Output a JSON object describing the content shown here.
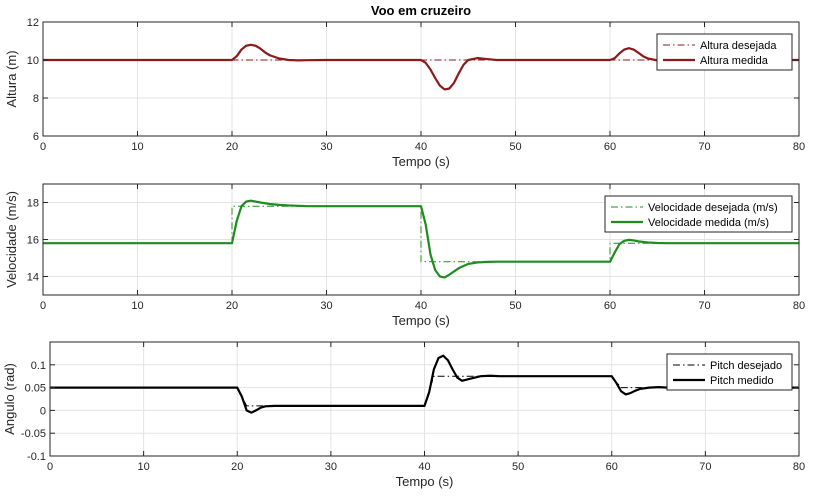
{
  "figure_title": "Voo em cruzeiro",
  "chart_data": [
    {
      "type": "line",
      "title": "Voo em cruzeiro",
      "xlabel": "Tempo (s)",
      "ylabel": "Altura (m)",
      "xlim": [
        0,
        80
      ],
      "ylim": [
        6,
        12
      ],
      "xticks": [
        0,
        10,
        20,
        30,
        40,
        50,
        60,
        70,
        80
      ],
      "yticks": [
        6,
        8,
        10,
        12
      ],
      "grid": true,
      "legend_position": "top-right",
      "series": [
        {
          "name": "Altura desejada",
          "color": "#8b1a1a",
          "style": "dashdot",
          "x": [
            0,
            80
          ],
          "y": [
            10,
            10
          ]
        },
        {
          "name": "Altura medida",
          "color": "#8b1a1a",
          "style": "solid",
          "x": [
            0,
            20,
            20.5,
            21,
            21.5,
            22,
            22.5,
            23,
            23.5,
            24,
            25,
            26,
            27,
            28,
            30,
            40,
            40.5,
            41,
            41.5,
            42,
            42.5,
            43,
            43.5,
            44,
            44.5,
            45,
            46,
            47,
            48,
            50,
            60,
            60.5,
            61,
            61.5,
            62,
            62.5,
            63,
            63.5,
            64,
            65,
            66,
            67,
            68,
            80
          ],
          "y": [
            10,
            10,
            10.2,
            10.55,
            10.75,
            10.8,
            10.75,
            10.6,
            10.4,
            10.25,
            10.08,
            10.0,
            9.98,
            9.99,
            10,
            10,
            9.85,
            9.5,
            9.05,
            8.65,
            8.45,
            8.5,
            8.8,
            9.3,
            9.75,
            10.0,
            10.1,
            10.05,
            10.0,
            10,
            10,
            10.1,
            10.35,
            10.55,
            10.62,
            10.55,
            10.38,
            10.2,
            10.08,
            9.98,
            9.97,
            9.99,
            10,
            10
          ]
        }
      ]
    },
    {
      "type": "line",
      "xlabel": "Tempo (s)",
      "ylabel": "Velocidade (m/s)",
      "xlim": [
        0,
        80
      ],
      "ylim": [
        13,
        19
      ],
      "xticks": [
        0,
        10,
        20,
        30,
        40,
        50,
        60,
        70,
        80
      ],
      "yticks": [
        14,
        16,
        18
      ],
      "grid": true,
      "legend_position": "top-right",
      "series": [
        {
          "name": "Velocidade desejada (m/s)",
          "color": "#1e8c1e",
          "style": "dashdot",
          "x": [
            0,
            20,
            20,
            40,
            40,
            60,
            60,
            80
          ],
          "y": [
            15.8,
            15.8,
            17.8,
            17.8,
            14.8,
            14.8,
            15.8,
            15.8
          ]
        },
        {
          "name": "Velocidade medida (m/s)",
          "color": "#1e8c1e",
          "style": "solid",
          "x": [
            0,
            20,
            20.5,
            21,
            21.5,
            22,
            22.5,
            23,
            24,
            25,
            26,
            27,
            28,
            30,
            40,
            40.5,
            41,
            41.5,
            42,
            42.5,
            43,
            44,
            45,
            46,
            47,
            48,
            50,
            60,
            60.5,
            61,
            61.5,
            62,
            62.5,
            63,
            64,
            65,
            66,
            68,
            80
          ],
          "y": [
            15.8,
            15.8,
            17.0,
            17.8,
            18.05,
            18.1,
            18.05,
            18.0,
            17.92,
            17.87,
            17.84,
            17.82,
            17.8,
            17.8,
            17.8,
            16.8,
            15.2,
            14.35,
            14.0,
            13.95,
            14.1,
            14.45,
            14.68,
            14.76,
            14.79,
            14.8,
            14.8,
            14.8,
            15.3,
            15.75,
            15.93,
            15.98,
            15.95,
            15.9,
            15.84,
            15.81,
            15.8,
            15.8,
            15.8
          ]
        }
      ]
    },
    {
      "type": "line",
      "xlabel": "Tempo (s)",
      "ylabel": "Angulo (rad)",
      "xlim": [
        0,
        80
      ],
      "ylim": [
        -0.1,
        0.15
      ],
      "xticks": [
        0,
        10,
        20,
        30,
        40,
        50,
        60,
        70,
        80
      ],
      "yticks": [
        -0.1,
        -0.05,
        0,
        0.05,
        0.1
      ],
      "ytick_labels": [
        "-0.1",
        "-0.05",
        "0",
        "0.05",
        "0.1"
      ],
      "grid": true,
      "legend_position": "top-right",
      "series": [
        {
          "name": "Pitch desejado",
          "color": "#000000",
          "style": "dashdot",
          "x": [
            0,
            20,
            21,
            23,
            40,
            41,
            43,
            60,
            61,
            63,
            80
          ],
          "y": [
            0.05,
            0.05,
            0.01,
            0.01,
            0.01,
            0.075,
            0.075,
            0.075,
            0.05,
            0.05,
            0.05
          ]
        },
        {
          "name": "Pitch medido",
          "color": "#000000",
          "style": "solid",
          "x": [
            0,
            20,
            20.5,
            21,
            21.5,
            22,
            22.5,
            23,
            24,
            25,
            30,
            40,
            40.5,
            41,
            41.5,
            42,
            42.5,
            43,
            43.5,
            44,
            45,
            46,
            47,
            48,
            50,
            60,
            60.5,
            61,
            61.5,
            62,
            62.5,
            63,
            64,
            65,
            66,
            80
          ],
          "y": [
            0.05,
            0.05,
            0.03,
            0.0,
            -0.005,
            0.0,
            0.006,
            0.009,
            0.01,
            0.01,
            0.01,
            0.01,
            0.04,
            0.09,
            0.115,
            0.12,
            0.11,
            0.09,
            0.072,
            0.065,
            0.07,
            0.075,
            0.076,
            0.075,
            0.075,
            0.075,
            0.06,
            0.042,
            0.035,
            0.038,
            0.043,
            0.047,
            0.05,
            0.051,
            0.05,
            0.05
          ]
        }
      ]
    }
  ]
}
